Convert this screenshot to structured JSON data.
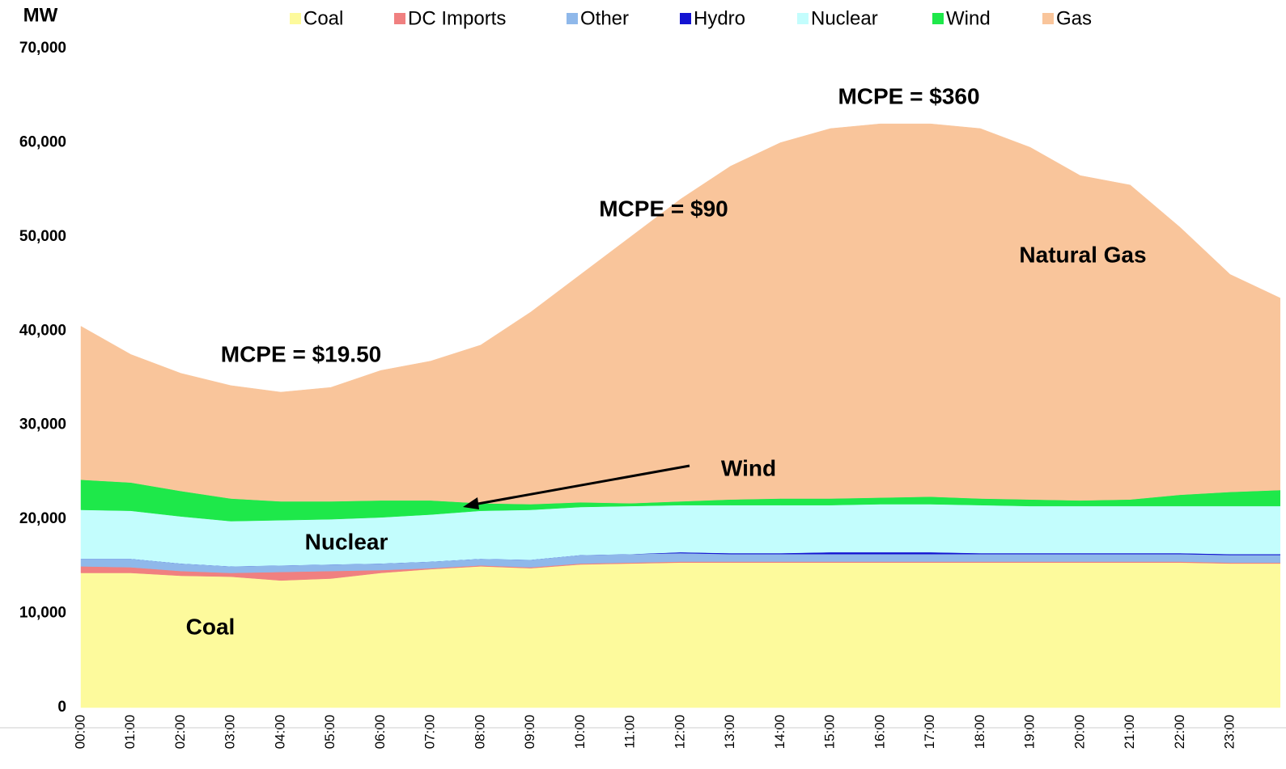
{
  "chart_data": {
    "type": "stacked_area",
    "y_label": "MW",
    "categories": [
      "00:00",
      "01:00",
      "02:00",
      "03:00",
      "04:00",
      "05:00",
      "06:00",
      "07:00",
      "08:00",
      "09:00",
      "10:00",
      "11:00",
      "12:00",
      "13:00",
      "14:00",
      "15:00",
      "16:00",
      "17:00",
      "18:00",
      "19:00",
      "20:00",
      "21:00",
      "22:00",
      "23:00",
      null
    ],
    "series": [
      {
        "name": "Coal",
        "color": "#fdfa9c",
        "values": [
          14300,
          14300,
          14000,
          13900,
          13500,
          13700,
          14300,
          14700,
          15000,
          14800,
          15200,
          15300,
          15400,
          15400,
          15400,
          15400,
          15400,
          15400,
          15400,
          15400,
          15400,
          15400,
          15400,
          15300,
          15300
        ]
      },
      {
        "name": "DC Imports",
        "color": "#f08080",
        "values": [
          700,
          600,
          500,
          400,
          900,
          800,
          300,
          100,
          100,
          100,
          100,
          100,
          100,
          100,
          100,
          100,
          100,
          100,
          100,
          100,
          100,
          100,
          100,
          100,
          100
        ]
      },
      {
        "name": "Other",
        "color": "#8fb8ea",
        "values": [
          800,
          900,
          800,
          700,
          700,
          700,
          700,
          700,
          700,
          800,
          900,
          900,
          900,
          800,
          800,
          800,
          800,
          800,
          800,
          800,
          800,
          800,
          800,
          800,
          800
        ]
      },
      {
        "name": "Hydro",
        "color": "#1414d2",
        "values": [
          0,
          0,
          0,
          0,
          0,
          0,
          0,
          0,
          0,
          0,
          0,
          0,
          100,
          100,
          100,
          200,
          200,
          200,
          100,
          100,
          100,
          100,
          100,
          100,
          100
        ]
      },
      {
        "name": "Nuclear",
        "color": "#c3fdfd",
        "values": [
          5200,
          5100,
          5000,
          4800,
          4800,
          4800,
          4900,
          5000,
          5100,
          5300,
          5100,
          5100,
          5000,
          5100,
          5100,
          5000,
          5100,
          5100,
          5100,
          5000,
          5000,
          5000,
          5000,
          5100,
          5100
        ]
      },
      {
        "name": "Wind",
        "color": "#1ee84a",
        "values": [
          3200,
          3000,
          2700,
          2400,
          2000,
          1900,
          1800,
          1500,
          800,
          600,
          500,
          300,
          400,
          600,
          700,
          700,
          700,
          800,
          700,
          700,
          600,
          700,
          1200,
          1500,
          1700
        ]
      },
      {
        "name": "Gas",
        "color": "#f9c59b",
        "values": [
          16300,
          13600,
          12500,
          12000,
          11600,
          12100,
          13800,
          14800,
          16800,
          20400,
          24200,
          28300,
          32100,
          35400,
          37800,
          39300,
          39700,
          39600,
          39300,
          37400,
          34500,
          33400,
          28400,
          23100,
          20400
        ]
      }
    ],
    "ylim": [
      0,
      70000
    ],
    "yticks": [
      0,
      {
        "value": 10000,
        "label": "10,000"
      },
      {
        "value": 20000,
        "label": "20,000"
      },
      {
        "value": 30000,
        "label": "30,000"
      },
      {
        "value": 40000,
        "label": "40,000"
      },
      {
        "value": 50000,
        "label": "50,000"
      },
      {
        "value": 60000,
        "label": "60,000"
      },
      {
        "value": 70000,
        "label": "70,000"
      }
    ],
    "grid": false,
    "legend": "top",
    "annotations": [
      "MCPE = $360",
      "MCPE = $90",
      "MCPE = $19.50",
      "Natural Gas",
      "Wind",
      "Nuclear",
      "Coal"
    ]
  }
}
